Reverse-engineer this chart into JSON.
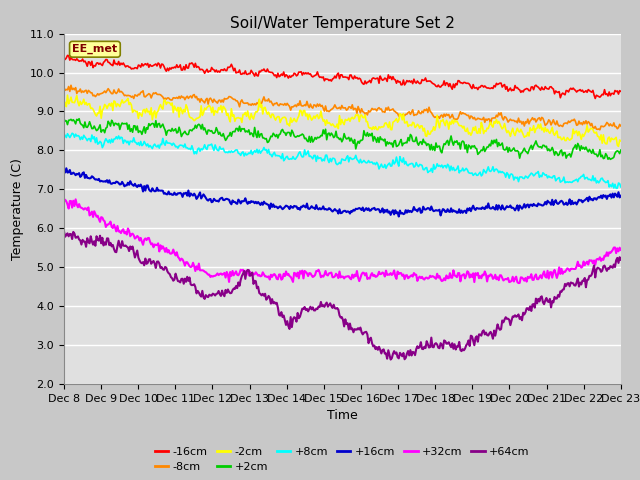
{
  "title": "Soil/Water Temperature Set 2",
  "xlabel": "Time",
  "ylabel": "Temperature (C)",
  "ylim": [
    2.0,
    11.0
  ],
  "yticks": [
    2.0,
    3.0,
    4.0,
    5.0,
    6.0,
    7.0,
    8.0,
    9.0,
    10.0,
    11.0
  ],
  "xtick_labels": [
    "Dec 8",
    "Dec 9",
    "Dec 10",
    "Dec 11",
    "Dec 12",
    "Dec 13",
    "Dec 14",
    "Dec 15",
    "Dec 16",
    "Dec 17",
    "Dec 18",
    "Dec 19",
    "Dec 20",
    "Dec 21",
    "Dec 22",
    "Dec 23"
  ],
  "background_color": "#c8c8c8",
  "plot_bg_color": "#e0e0e0",
  "annotation_text": "EE_met",
  "annotation_facecolor": "#ffff99",
  "annotation_edgecolor": "#808000",
  "series": [
    {
      "label": "-16cm",
      "color": "#ff0000"
    },
    {
      "label": "-8cm",
      "color": "#ff8800"
    },
    {
      "label": "-2cm",
      "color": "#ffff00"
    },
    {
      "label": "+2cm",
      "color": "#00cc00"
    },
    {
      "label": "+8cm",
      "color": "#00ffff"
    },
    {
      "label": "+16cm",
      "color": "#0000cc"
    },
    {
      "label": "+32cm",
      "color": "#ff00ff"
    },
    {
      "label": "+64cm",
      "color": "#880088"
    }
  ],
  "title_fontsize": 11,
  "axis_fontsize": 9,
  "tick_fontsize": 8
}
